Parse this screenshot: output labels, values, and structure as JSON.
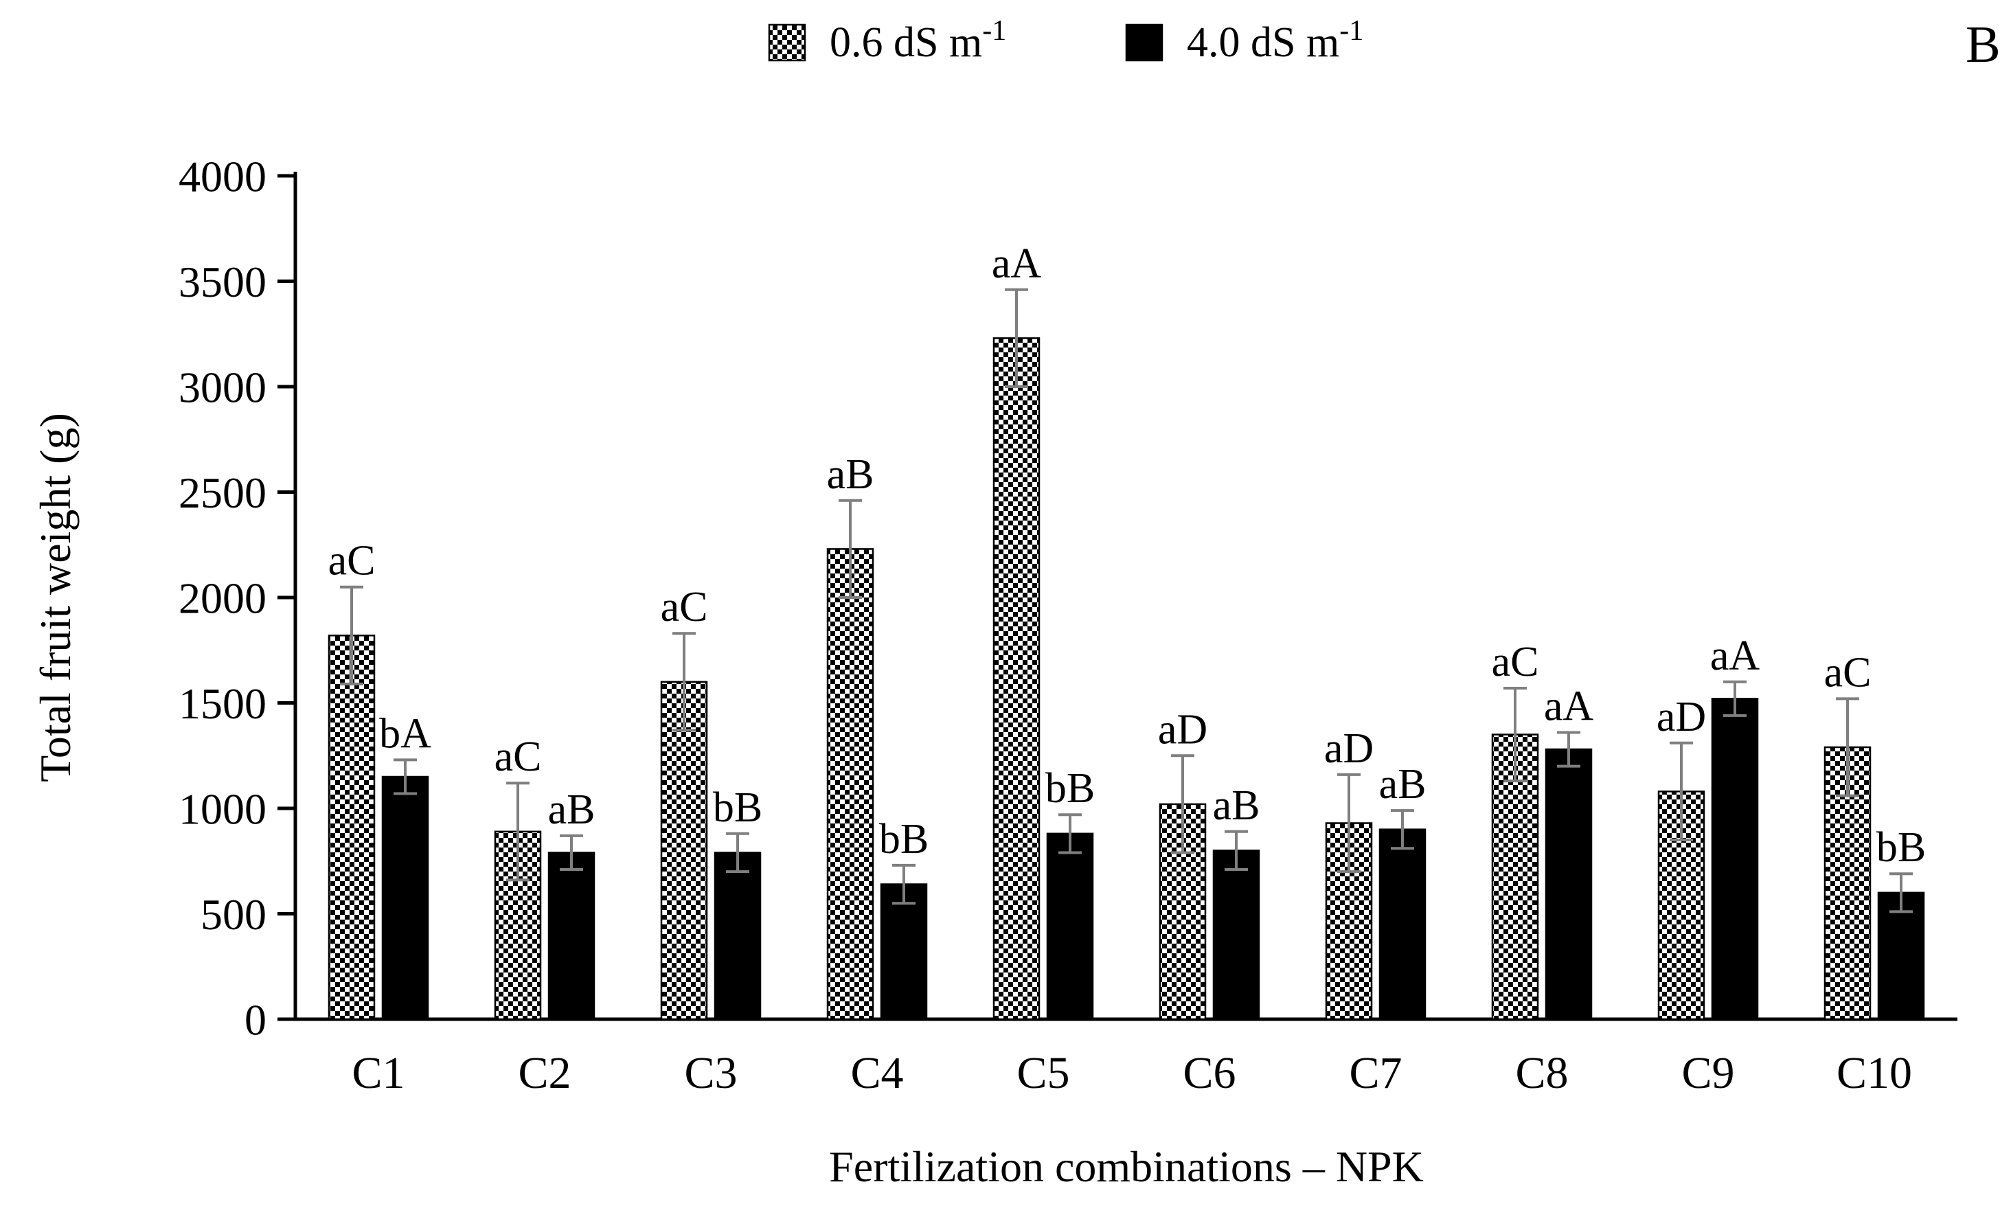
{
  "panel_label": "B)",
  "colors": {
    "bar_solid": "#000000",
    "axis": "#000000",
    "error_bar": "#7f7f7f",
    "background": "#ffffff"
  },
  "chart_data": {
    "type": "bar",
    "title": "",
    "xlabel": "Fertilization combinations – NPK",
    "ylabel": "Total fruit weight (g)",
    "ylim": [
      0,
      4000
    ],
    "ytick_step": 500,
    "grid": false,
    "legend_position": "top-center",
    "categories": [
      "C1",
      "C2",
      "C3",
      "C4",
      "C5",
      "C6",
      "C7",
      "C8",
      "C9",
      "C10"
    ],
    "series": [
      {
        "label_base": "0.6 dS m",
        "label_sup": "-1",
        "style": "checkered",
        "values": [
          1820,
          890,
          1600,
          2230,
          3230,
          1020,
          930,
          1350,
          1080,
          1290
        ],
        "errors": [
          230,
          230,
          230,
          230,
          230,
          230,
          230,
          220,
          230,
          230
        ],
        "labels": [
          "aC",
          "aC",
          "aC",
          "aB",
          "aA",
          "aD",
          "aD",
          "aC",
          "aD",
          "aC"
        ]
      },
      {
        "label_base": "4.0 dS m",
        "label_sup": "-1",
        "style": "solid",
        "values": [
          1150,
          790,
          790,
          640,
          880,
          800,
          900,
          1280,
          1520,
          600
        ],
        "errors": [
          80,
          80,
          90,
          90,
          90,
          90,
          90,
          80,
          80,
          90
        ],
        "labels": [
          "bA",
          "aB",
          "bB",
          "bB",
          "bB",
          "aB",
          "aB",
          "aA",
          "aA",
          "bB"
        ]
      }
    ]
  }
}
